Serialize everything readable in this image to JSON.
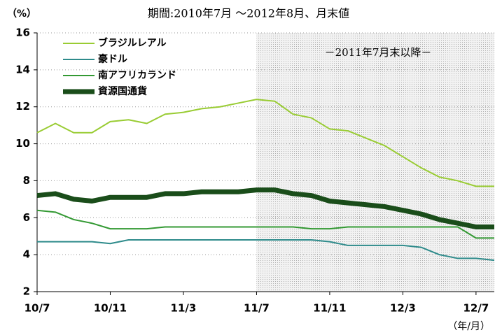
{
  "chart_data": {
    "type": "line",
    "title": "期間:2010年7月 ～2012年8月、月末値",
    "y_unit": "（%）",
    "x_unit": "（年/月）",
    "annotation": "－2011年7月末以降－",
    "categories": [
      "10/7",
      null,
      null,
      null,
      "10/11",
      null,
      null,
      null,
      "11/3",
      null,
      null,
      null,
      "11/7",
      null,
      null,
      null,
      "11/11",
      null,
      null,
      null,
      "12/3",
      null,
      null,
      null,
      "12/7",
      null
    ],
    "series": [
      {
        "name": "ブラジルレアル",
        "color": "#99cc33",
        "width": 2,
        "values": [
          10.6,
          11.1,
          10.6,
          10.6,
          11.2,
          11.3,
          11.1,
          11.6,
          11.7,
          11.9,
          12.0,
          12.2,
          12.4,
          12.3,
          11.6,
          11.4,
          10.8,
          10.7,
          10.3,
          9.9,
          9.3,
          8.7,
          8.2,
          8.0,
          7.7,
          7.7
        ]
      },
      {
        "name": "豪ドル",
        "color": "#2e8b8b",
        "width": 2,
        "values": [
          4.7,
          4.7,
          4.7,
          4.7,
          4.6,
          4.8,
          4.8,
          4.8,
          4.8,
          4.8,
          4.8,
          4.8,
          4.8,
          4.8,
          4.8,
          4.8,
          4.7,
          4.5,
          4.5,
          4.5,
          4.5,
          4.4,
          4.0,
          3.8,
          3.8,
          3.7
        ]
      },
      {
        "name": "南アフリカランド",
        "color": "#339933",
        "width": 2,
        "values": [
          6.4,
          6.3,
          5.9,
          5.7,
          5.4,
          5.4,
          5.4,
          5.5,
          5.5,
          5.5,
          5.5,
          5.5,
          5.5,
          5.5,
          5.5,
          5.4,
          5.4,
          5.5,
          5.5,
          5.5,
          5.5,
          5.5,
          5.5,
          5.5,
          4.9,
          4.9
        ]
      },
      {
        "name": "資源国通貨",
        "color": "#1a4d1a",
        "width": 7,
        "values": [
          7.2,
          7.3,
          7.0,
          6.9,
          7.1,
          7.1,
          7.1,
          7.3,
          7.3,
          7.4,
          7.4,
          7.4,
          7.5,
          7.5,
          7.3,
          7.2,
          6.9,
          6.8,
          6.7,
          6.6,
          6.4,
          6.2,
          5.9,
          5.7,
          5.5,
          5.5
        ]
      }
    ],
    "shaded_from": "11/7",
    "ylim": [
      2,
      16
    ],
    "yticks": [
      2,
      4,
      6,
      8,
      10,
      12,
      14,
      16
    ],
    "grid": true,
    "legend": "upper left"
  }
}
